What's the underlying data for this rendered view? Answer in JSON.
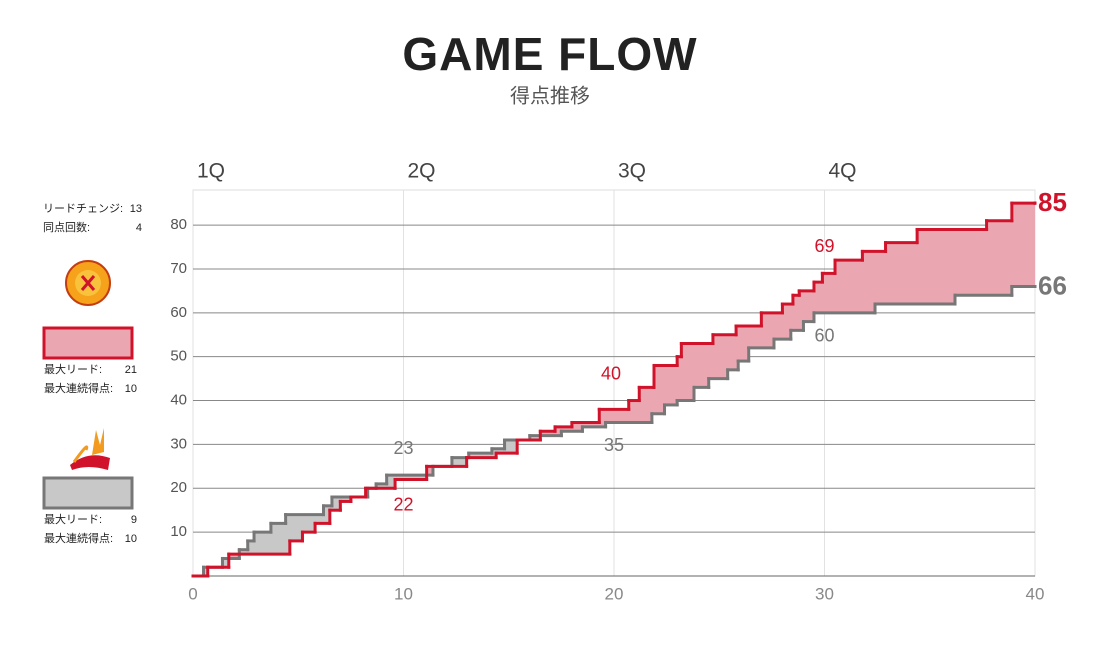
{
  "chart_data": {
    "type": "step-area",
    "title": "GAME FLOW",
    "subtitle": "得点推移",
    "quarters": [
      "1Q",
      "2Q",
      "3Q",
      "4Q"
    ],
    "quarter_x": [
      0,
      10,
      20,
      30
    ],
    "score_x": [
      10,
      20,
      30,
      40
    ],
    "xlim": [
      0,
      40
    ],
    "xticks": [
      0,
      10,
      20,
      30,
      40
    ],
    "ylim": [
      0,
      88
    ],
    "yticks": [
      10,
      20,
      30,
      40,
      50,
      60,
      70,
      80
    ],
    "grid": true,
    "series": [
      {
        "color": "#d0132a",
        "fill": "#eaa6b1",
        "x": [
          0,
          0.7,
          1.7,
          4.6,
          5.2,
          5.8,
          6.5,
          7.0,
          7.5,
          8.2,
          9.6,
          11.1,
          13.0,
          14.4,
          15.4,
          16.5,
          17.2,
          18.0,
          19.3,
          20.7,
          21.2,
          21.9,
          23.0,
          23.2,
          24.7,
          25.8,
          27.0,
          28.0,
          28.5,
          28.8,
          29.5,
          29.9,
          30.5,
          31.8,
          32.9,
          34.4,
          37.7,
          38.9,
          40
        ],
        "values": [
          0,
          2,
          5,
          8,
          10,
          12,
          15,
          17,
          18,
          20,
          22,
          25,
          27,
          28,
          31,
          33,
          34,
          35,
          38,
          40,
          43,
          48,
          50,
          53,
          55,
          57,
          60,
          62,
          64,
          65,
          67,
          69,
          72,
          74,
          76,
          79,
          81,
          85,
          85
        ],
        "quarter_scores": [
          22,
          40,
          69,
          85
        ]
      },
      {
        "color": "#777777",
        "fill": "#c8c8c8",
        "x": [
          0,
          0.5,
          1.4,
          2.2,
          2.6,
          2.9,
          3.7,
          4.4,
          6.2,
          6.6,
          8.3,
          8.7,
          9.2,
          11.4,
          12.3,
          13.1,
          14.2,
          14.8,
          16.0,
          17.5,
          18.5,
          19.6,
          21.8,
          22.4,
          23.0,
          23.8,
          24.5,
          25.4,
          25.9,
          26.4,
          27.6,
          28.4,
          29.0,
          29.5,
          32.4,
          36.2,
          38.9,
          40
        ],
        "values": [
          0,
          2,
          4,
          6,
          8,
          10,
          12,
          14,
          16,
          18,
          20,
          21,
          23,
          25,
          27,
          28,
          29,
          31,
          32,
          33,
          34,
          35,
          37,
          39,
          40,
          43,
          45,
          47,
          49,
          52,
          54,
          56,
          58,
          60,
          62,
          64,
          66,
          66
        ],
        "quarter_scores": [
          23,
          35,
          60,
          66
        ]
      }
    ]
  },
  "summary": [
    {
      "label": "リードチェンジ:",
      "value": 13
    },
    {
      "label": "同点回数:",
      "value": 4
    }
  ],
  "teams": [
    {
      "stats": [
        {
          "label": "最大リード:",
          "value": 21
        },
        {
          "label": "最大連続得点:",
          "value": 10
        }
      ]
    },
    {
      "stats": [
        {
          "label": "最大リード:",
          "value": 9
        },
        {
          "label": "最大連続得点:",
          "value": 10
        }
      ]
    }
  ]
}
